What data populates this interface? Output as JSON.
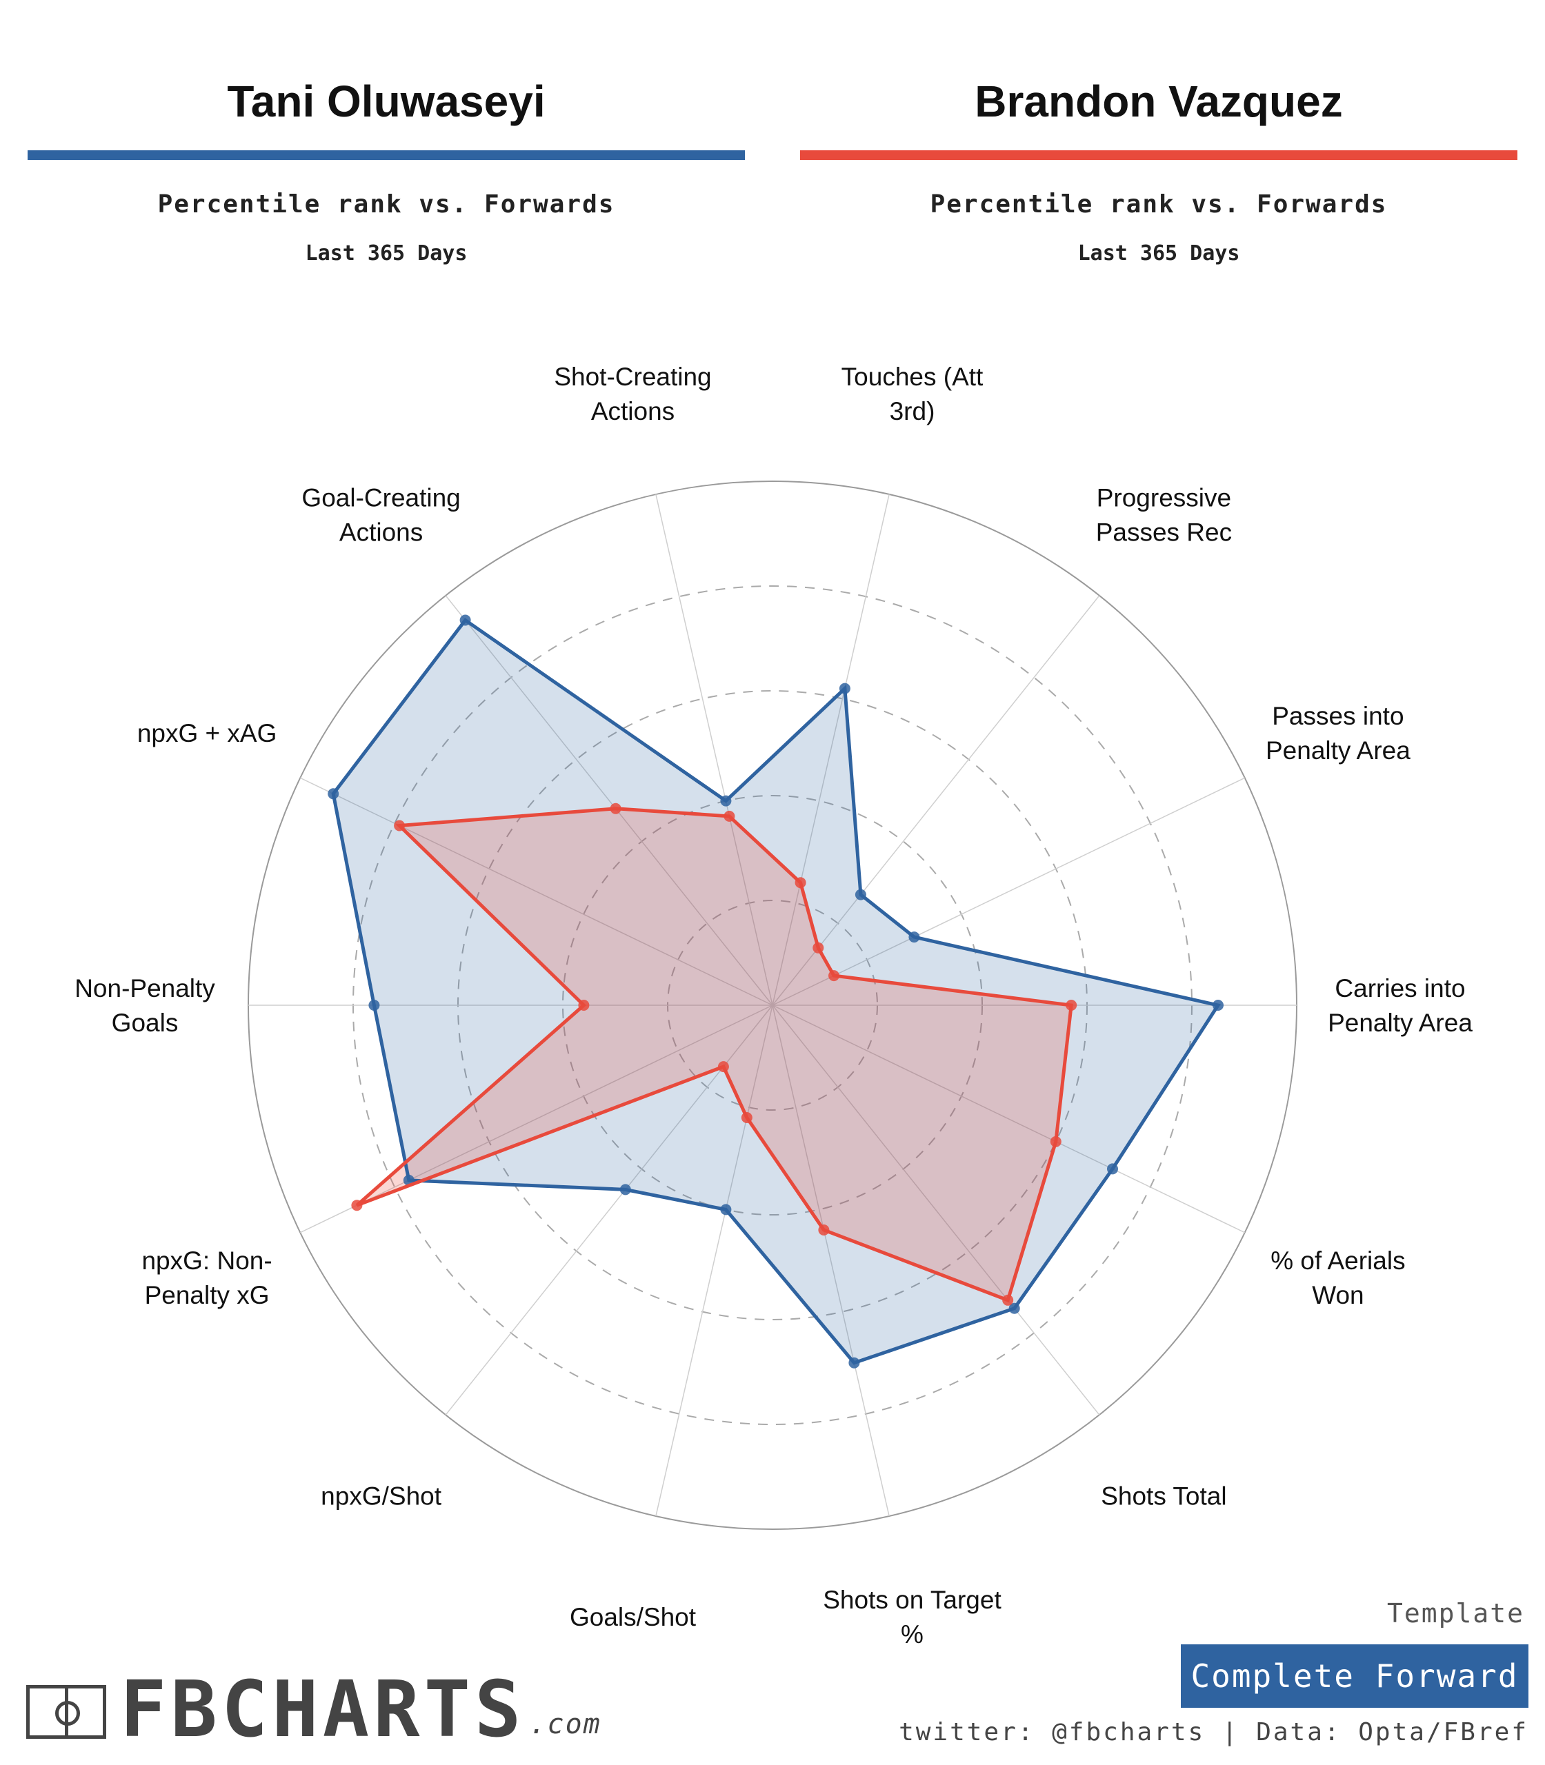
{
  "players": [
    {
      "name": "Tani Oluwaseyi",
      "subtitle": "Percentile rank vs. Forwards",
      "period": "Last 365 Days",
      "color": "#2f63a0"
    },
    {
      "name": "Brandon Vazquez",
      "subtitle": "Percentile rank vs. Forwards",
      "period": "Last 365 Days",
      "color": "#e84a3c"
    }
  ],
  "chart_data": {
    "type": "radar",
    "axes": [
      "Shot-Creating Actions",
      "Touches (Att 3rd)",
      "Progressive Passes Rec",
      "Passes into Penalty Area",
      "Carries into Penalty Area",
      "% of Aerials Won",
      "Shots Total",
      "Shots on Target %",
      "Goals/Shot",
      "npxG/Shot",
      "npxG: Non-Penalty xG",
      "Non-Penalty Goals",
      "npxG + xAG",
      "Goal-Creating Actions"
    ],
    "axis_label_lines": [
      [
        "Shot-Creating",
        "Actions"
      ],
      [
        "Touches (Att",
        "3rd)"
      ],
      [
        "Progressive",
        "Passes Rec"
      ],
      [
        "Passes into",
        "Penalty Area"
      ],
      [
        "Carries into",
        "Penalty Area"
      ],
      [
        "% of Aerials",
        "Won"
      ],
      [
        "Shots Total"
      ],
      [
        "Shots on Target",
        "%"
      ],
      [
        "Goals/Shot"
      ],
      [
        "npxG/Shot"
      ],
      [
        "npxG: Non-",
        "Penalty xG"
      ],
      [
        "Non-Penalty",
        "Goals"
      ],
      [
        "npxG + xAG"
      ],
      [
        "Goal-Creating",
        "Actions"
      ]
    ],
    "range": [
      0,
      100
    ],
    "rings": [
      20,
      40,
      60,
      80,
      100
    ],
    "series": [
      {
        "name": "Tani Oluwaseyi",
        "color": "#2f63a0",
        "fill": "rgba(47,99,160,0.20)",
        "values": [
          40,
          62,
          27,
          30,
          85,
          72,
          74,
          70,
          40,
          45,
          77,
          76,
          93,
          94
        ]
      },
      {
        "name": "Brandon Vazquez",
        "color": "#e84a3c",
        "fill": "rgba(232,74,60,0.22)",
        "values": [
          37,
          24,
          14,
          13,
          57,
          60,
          72,
          44,
          22,
          15,
          88,
          36,
          79,
          48
        ]
      }
    ]
  },
  "footer": {
    "template_title": "Template",
    "template_name": "Complete Forward",
    "template_color": "#2f63a0",
    "credit": "twitter: @fbcharts | Data: Opta/FBref",
    "logo_text": "FBCHARTS",
    "logo_suffix": ".com"
  }
}
